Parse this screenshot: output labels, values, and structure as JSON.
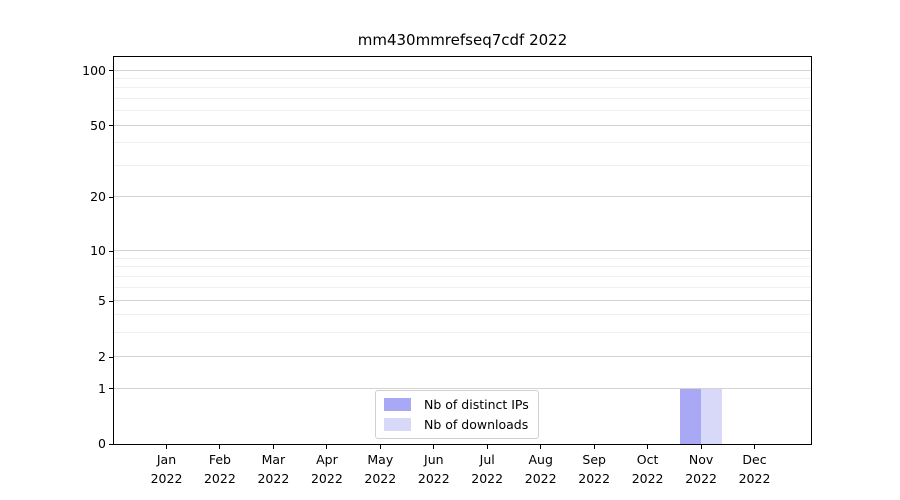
{
  "chart": {
    "title": "mm430mmrefseq7cdf 2022",
    "y_axis": {
      "tick_labels": [
        "100",
        "50",
        "20",
        "10",
        "5",
        "2",
        "1",
        "0"
      ]
    },
    "x_axis": {
      "months": [
        "Jan",
        "Feb",
        "Mar",
        "Apr",
        "May",
        "Jun",
        "Jul",
        "Aug",
        "Sep",
        "Oct",
        "Nov",
        "Dec"
      ],
      "year": "2022"
    },
    "legend": [
      {
        "label": "Nb of distinct IPs",
        "color": "#a8a8f5"
      },
      {
        "label": "Nb of downloads",
        "color": "#d8d8f8"
      }
    ]
  },
  "chart_data": {
    "type": "bar",
    "title": "mm430mmrefseq7cdf 2022",
    "categories": [
      "Jan 2022",
      "Feb 2022",
      "Mar 2022",
      "Apr 2022",
      "May 2022",
      "Jun 2022",
      "Jul 2022",
      "Aug 2022",
      "Sep 2022",
      "Oct 2022",
      "Nov 2022",
      "Dec 2022"
    ],
    "series": [
      {
        "name": "Nb of distinct IPs",
        "color": "#a8a8f5",
        "values": [
          0,
          0,
          0,
          0,
          0,
          0,
          0,
          0,
          0,
          0,
          1,
          0
        ]
      },
      {
        "name": "Nb of downloads",
        "color": "#d8d8f8",
        "values": [
          0,
          0,
          0,
          0,
          0,
          0,
          0,
          0,
          0,
          0,
          1,
          0
        ]
      }
    ],
    "xlabel": "",
    "ylabel": "",
    "yaxis": {
      "scale": "asinh-like (linear near 0, logarithmic above 1)",
      "major_ticks": [
        0,
        1,
        2,
        5,
        10,
        20,
        50,
        100
      ],
      "minor_ticks": [
        3,
        4,
        6,
        7,
        8,
        9,
        30,
        40,
        60,
        70,
        80,
        90
      ],
      "ylim_top_approx": 120
    },
    "grid": "horizontal major (light gray) + faint minor lines",
    "legend_position": "lower center"
  }
}
